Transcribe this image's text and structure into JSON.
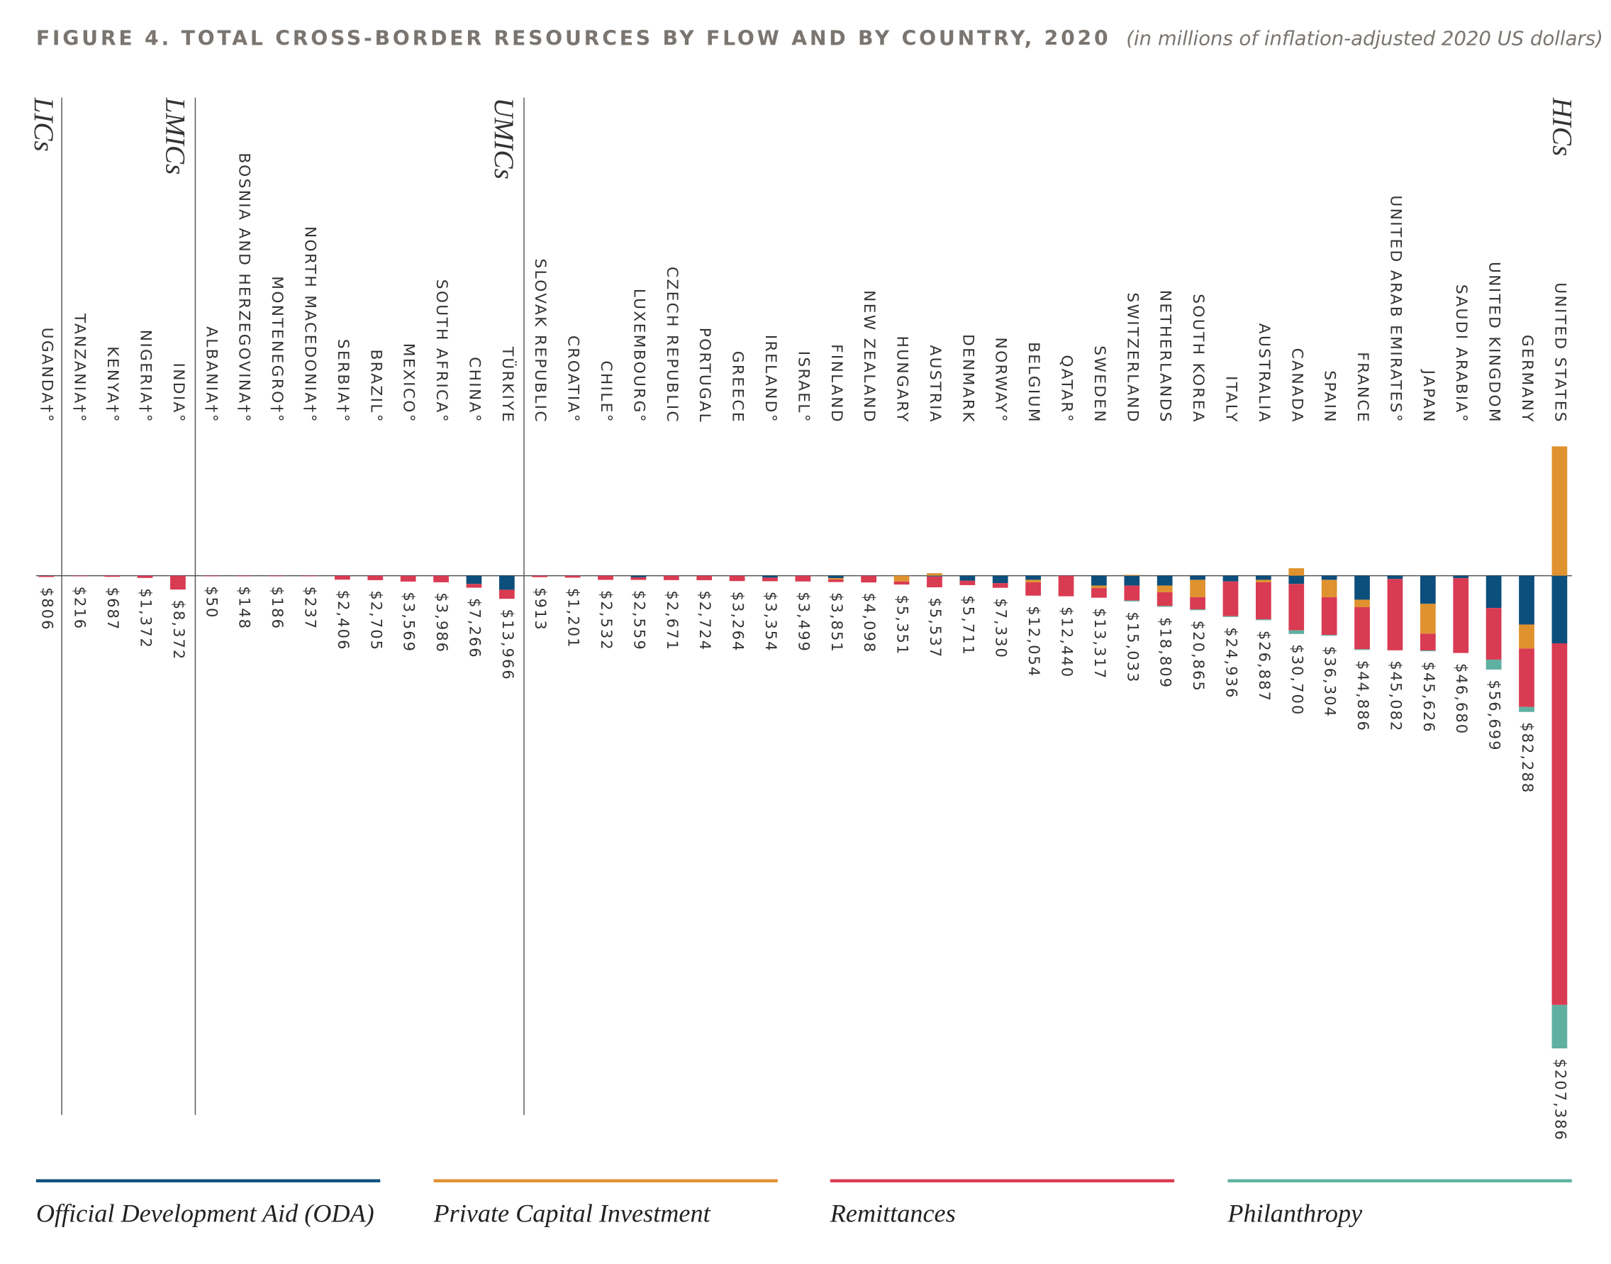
{
  "chart_data": {
    "type": "bar",
    "title": "FIGURE 4. TOTAL CROSS-BORDER RESOURCES BY FLOW AND BY COUNTRY, 2020",
    "subtitle": "(in millions of inflation-adjusted 2020 US dollars)",
    "groups": [
      "LICs",
      "LMICs",
      "UMICs",
      "HICs"
    ],
    "categories": [
      "UGANDA†°",
      "TANZANIA†°",
      "KENYA†°",
      "NIGERIA†°",
      "INDIA°",
      "ALBANIA†°",
      "BOSNIA AND HERZEGOVINA†°",
      "MONTENEGRO†°",
      "NORTH MACEDONIA†°",
      "SERBIA†°",
      "BRAZIL°",
      "MEXICO°",
      "SOUTH AFRICA°",
      "CHINA°",
      "TÜRKIYE",
      "SLOVAK REPUBLIC",
      "CROATIA°",
      "CHILE°",
      "LUXEMBOURG°",
      "CZECH REPUBLIC",
      "PORTUGAL",
      "GREECE",
      "IRELAND°",
      "ISRAEL°",
      "FINLAND",
      "NEW ZEALAND",
      "HUNGARY",
      "AUSTRIA",
      "DENMARK",
      "NORWAY°",
      "BELGIUM",
      "QATAR°",
      "SWEDEN",
      "SWITZERLAND",
      "NETHERLANDS",
      "SOUTH KOREA",
      "ITALY",
      "AUSTRALIA",
      "CANADA",
      "SPAIN",
      "FRANCE",
      "UNITED ARAB EMIRATES°",
      "JAPAN",
      "SAUDI ARABIA°",
      "UNITED KINGDOM",
      "GERMANY",
      "UNITED STATES"
    ],
    "series": [
      {
        "name": "Official Development Aid (ODA)",
        "color": "#0d4f7c",
        "values": [
          100,
          0,
          0,
          0,
          0,
          0,
          0,
          0,
          0,
          0,
          0,
          0,
          0,
          5000,
          8500,
          0,
          0,
          0,
          1000,
          0,
          0,
          0,
          1200,
          0,
          1500,
          0,
          0,
          500,
          3000,
          4500,
          2500,
          0,
          6000,
          6000,
          6000,
          2500,
          3500,
          2500,
          5000,
          2500,
          14500,
          2000,
          17000,
          1500,
          19500,
          29500,
          40870
        ]
      },
      {
        "name": "Private Capital Investment",
        "color": "#e0922f",
        "values": [
          0,
          0,
          0,
          0,
          0,
          0,
          0,
          0,
          0,
          0,
          0,
          0,
          0,
          0,
          0,
          0,
          0,
          0,
          0,
          0,
          0,
          0,
          0,
          0,
          800,
          0,
          3500,
          -1500,
          0,
          0,
          1500,
          0,
          1500,
          -500,
          4000,
          10500,
          0,
          1500,
          -4500,
          10500,
          4500,
          0,
          18000,
          0,
          0,
          14500,
          -78080
        ]
      },
      {
        "name": "Remittances",
        "color": "#d93b52",
        "values": [
          706,
          216,
          687,
          1372,
          8372,
          50,
          148,
          186,
          237,
          2406,
          2705,
          3569,
          3986,
          2266,
          5466,
          913,
          1201,
          2532,
          1559,
          2671,
          2724,
          3264,
          2154,
          3499,
          1551,
          4098,
          1851,
          6537,
          2711,
          2830,
          8054,
          12440,
          5817,
          9033,
          8309,
          7365,
          20936,
          22387,
          28000,
          22804,
          25386,
          43082,
          10126,
          45180,
          31199,
          35288,
          218380
        ]
      },
      {
        "name": "Philanthropy",
        "color": "#5fb0a0",
        "values": [
          0,
          0,
          0,
          0,
          0,
          0,
          0,
          0,
          0,
          0,
          0,
          0,
          0,
          0,
          0,
          0,
          0,
          0,
          0,
          0,
          0,
          0,
          0,
          0,
          0,
          0,
          0,
          0,
          0,
          0,
          0,
          0,
          0,
          500,
          500,
          500,
          500,
          500,
          2200,
          500,
          500,
          0,
          500,
          0,
          6000,
          3000,
          26216
        ]
      }
    ],
    "totals": {
      "values": [
        806,
        216,
        687,
        1372,
        8372,
        50,
        148,
        186,
        237,
        2406,
        2705,
        3569,
        3986,
        7266,
        13966,
        913,
        1201,
        2532,
        2559,
        2671,
        2724,
        3264,
        3354,
        3499,
        3851,
        4098,
        5351,
        5537,
        5711,
        7330,
        12054,
        12440,
        13317,
        15033,
        18809,
        20865,
        24936,
        26887,
        30700,
        36304,
        44886,
        45082,
        45626,
        46680,
        56699,
        82288,
        207386
      ],
      "value_labels": [
        "$806",
        "$216",
        "$687",
        "$1,372",
        "$8,372",
        "$50",
        "$148",
        "$186",
        "$237",
        "$2,406",
        "$2,705",
        "$3,569",
        "$3,986",
        "$7,266",
        "$13,966",
        "$913",
        "$1,201",
        "$2,532",
        "$2,559",
        "$2,671",
        "$2,724",
        "$3,264",
        "$3,354",
        "$3,499",
        "$3,851",
        "$4,098",
        "$5,351",
        "$5,537",
        "$5,711",
        "$7,330",
        "$12,054",
        "$12,440",
        "$13,317",
        "$15,033",
        "$18,809",
        "$20,865",
        "$24,936",
        "$26,887",
        "$30,700",
        "$36,304",
        "$44,886",
        "$45,082",
        "$45,626",
        "$46,680",
        "$56,699",
        "$82,288",
        "$207,386"
      ]
    },
    "ylim": [
      -87000,
      335000
    ]
  }
}
